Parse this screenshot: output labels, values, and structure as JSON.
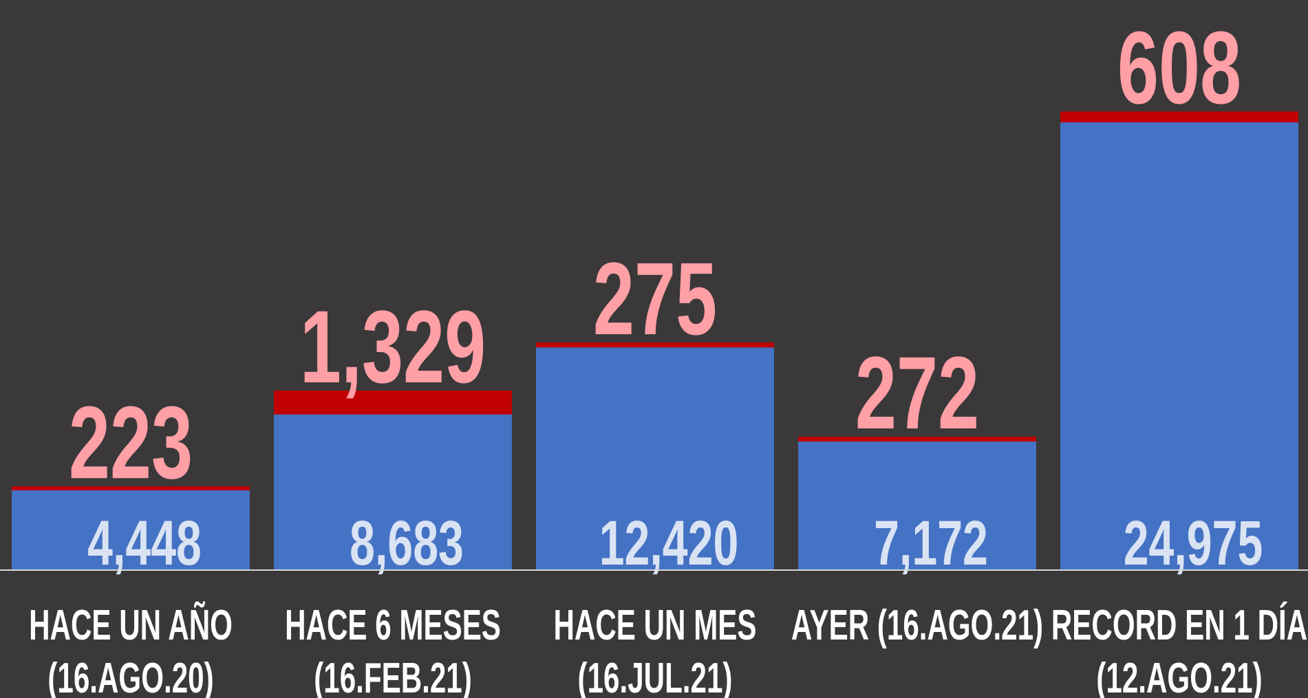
{
  "chart_data": {
    "type": "stacked_bar",
    "categories": [
      [
        "HACE UN AÑO",
        "(16.AGO.20)"
      ],
      [
        "HACE 6 MESES",
        "(16.FEB.21)"
      ],
      [
        "HACE UN MES",
        "(16.JUL.21)"
      ],
      [
        "AYER (16.AGO.21)"
      ],
      [
        "RECORD EN 1 DÍA",
        "(12.AGO.21)"
      ]
    ],
    "series": [
      {
        "color": "#4472c4",
        "label_color": "#dae3f3",
        "values": [
          4448,
          8683,
          12420,
          7172,
          24975
        ],
        "value_labels": [
          "4,448",
          "8,683",
          "12,420",
          "7,172",
          "24,975"
        ]
      },
      {
        "color": "#c00000",
        "label_color": "#ff9fa6",
        "values": [
          223,
          1329,
          275,
          272,
          608
        ],
        "value_labels": [
          "223",
          "1,329",
          "275",
          "272",
          "608"
        ]
      }
    ],
    "ylim": [
      0,
      31800
    ]
  }
}
